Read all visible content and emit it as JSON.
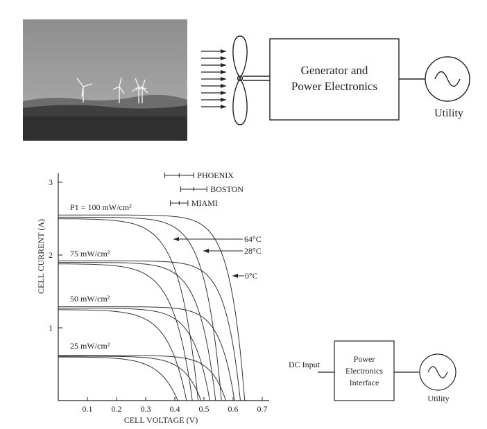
{
  "wind_system": {
    "block_label_line1": "Generator and",
    "block_label_line2": "Power Electronics",
    "utility_label": "Utility"
  },
  "pv_system": {
    "dc_input_label": "DC Input",
    "block_label_line1": "Power",
    "block_label_line2": "Electronics",
    "block_label_line3": "Interface",
    "utility_label": "Utility"
  },
  "chart_data": {
    "type": "line",
    "xlabel": "CELL VOLTAGE (V)",
    "ylabel": "CELL CURRENT (A)",
    "xlim": [
      0,
      0.7
    ],
    "ylim": [
      0,
      3.0
    ],
    "x_ticks": [
      "0.1",
      "0.2",
      "0.3",
      "0.4",
      "0.5",
      "0.6",
      "0.7"
    ],
    "y_ticks": [
      "1",
      "2",
      "3"
    ],
    "irradiance_labels": [
      "P1 = 100 mW/cm²",
      "75 mW/cm²",
      "50 mW/cm²",
      "25 mW/cm²"
    ],
    "temperature_labels": [
      "64°C",
      "28°C",
      "0°C"
    ],
    "location_ranges": [
      {
        "name": "PHOENIX",
        "vmin": 0.365,
        "vmax": 0.465
      },
      {
        "name": "BOSTON",
        "vmin": 0.42,
        "vmax": 0.51
      },
      {
        "name": "MIAMI",
        "vmin": 0.385,
        "vmax": 0.445
      }
    ],
    "series": [
      {
        "isc": 2.5,
        "voc": 0.48,
        "k": 16
      },
      {
        "isc": 2.52,
        "voc": 0.56,
        "k": 18
      },
      {
        "isc": 2.55,
        "voc": 0.64,
        "k": 20
      },
      {
        "isc": 1.88,
        "voc": 0.46,
        "k": 16
      },
      {
        "isc": 1.9,
        "voc": 0.54,
        "k": 18
      },
      {
        "isc": 1.92,
        "voc": 0.625,
        "k": 20
      },
      {
        "isc": 1.25,
        "voc": 0.44,
        "k": 16
      },
      {
        "isc": 1.27,
        "voc": 0.52,
        "k": 18
      },
      {
        "isc": 1.29,
        "voc": 0.605,
        "k": 20
      },
      {
        "isc": 0.6,
        "voc": 0.41,
        "k": 16
      },
      {
        "isc": 0.61,
        "voc": 0.49,
        "k": 18
      },
      {
        "isc": 0.62,
        "voc": 0.575,
        "k": 20
      }
    ],
    "grid": false
  }
}
